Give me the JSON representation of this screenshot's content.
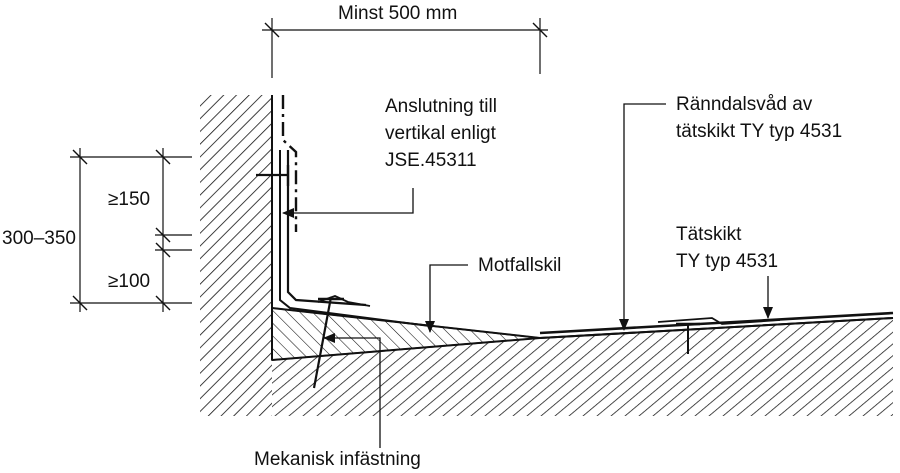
{
  "labels": {
    "width_dim": "Minst 500 mm",
    "connection": [
      "Anslutning till",
      "vertikal enligt",
      "JSE.45311"
    ],
    "valley_sheet": [
      "Ränndalsvåd av",
      "tätskikt TY typ 4531"
    ],
    "membrane": [
      "Tätskikt",
      "TY typ 4531"
    ],
    "counter_slope": "Motfallskil",
    "fastening": "Mekanisk infästning",
    "height_total": "300–350",
    "height_upper": "≥150",
    "height_lower": "≥100"
  },
  "colors": {
    "line": "#111111",
    "background": "#ffffff"
  }
}
